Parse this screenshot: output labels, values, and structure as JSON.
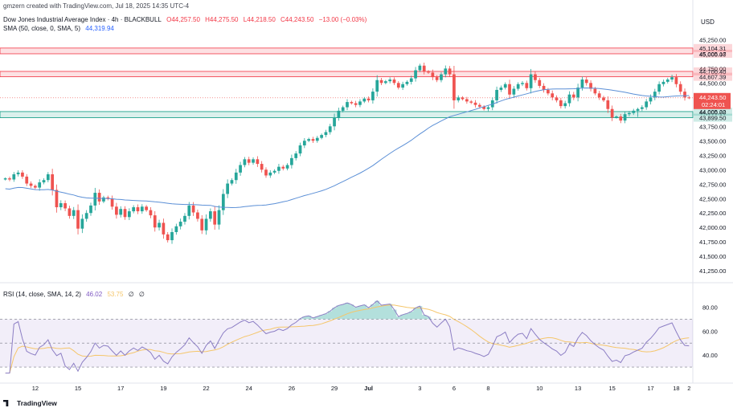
{
  "attribution": "gmzern created with TradingView.com, Jul 18, 2025 14:35 UTC-4",
  "branding": "TradingView",
  "currency": "USD",
  "legend": {
    "symbol": "Dow Jones Industrial Average Index · 4h · BLACKBULL",
    "open": "O44,257.50",
    "high": "H44,275.50",
    "low": "L44,218.50",
    "close": "C44,243.50",
    "change": "−13.00 (−0.03%)",
    "sma_label": "SMA (50, close, 0, SMA, 5)",
    "sma_value": "44,319.94",
    "rsi_label": "RSI (14, close, SMA, 14, 2)",
    "rsi_value": "46.02",
    "rsi_ma_value": "53.75",
    "rsi_extra_1": "∅",
    "rsi_extra_2": "∅"
  },
  "colors": {
    "up": "#26a69a",
    "down": "#ef5350",
    "sma": "#5b8fd6",
    "rsi": "#8c7ec4",
    "rsi_ma": "#f5c66b",
    "zone_red": "#f23645",
    "zone_green": "#089981"
  },
  "chart_data": {
    "type": "candlestick",
    "y_axis_ticks": [
      41250,
      41500,
      41750,
      42000,
      42250,
      42500,
      42750,
      43000,
      43250,
      43500,
      43750,
      44000,
      44250,
      44500,
      44750,
      45000,
      45250
    ],
    "y_axis_tick_labels": [
      "41,250.00",
      "41,500.00",
      "41,750.00",
      "42,000.00",
      "42,250.00",
      "42,500.00",
      "42,750.00",
      "43,000.00",
      "43,250.00",
      "43,500.00",
      "43,750.00",
      "44,000.00",
      "44,250.00",
      "44,500.00",
      "44,750.00",
      "45,000.00",
      "45,250.00"
    ],
    "ylim": [
      41100,
      45380
    ],
    "x_ticks": [
      {
        "label": "12",
        "bar": 7
      },
      {
        "label": "15",
        "bar": 17
      },
      {
        "label": "17",
        "bar": 27
      },
      {
        "label": "19",
        "bar": 37
      },
      {
        "label": "22",
        "bar": 47
      },
      {
        "label": "24",
        "bar": 57
      },
      {
        "label": "26",
        "bar": 67
      },
      {
        "label": "29",
        "bar": 77
      },
      {
        "label": "Jul",
        "bar": 85
      },
      {
        "label": "3",
        "bar": 97
      },
      {
        "label": "6",
        "bar": 105
      },
      {
        "label": "8",
        "bar": 113
      },
      {
        "label": "10",
        "bar": 125
      },
      {
        "label": "13",
        "bar": 134
      },
      {
        "label": "15",
        "bar": 142
      },
      {
        "label": "17",
        "bar": 151
      },
      {
        "label": "18",
        "bar": 157
      },
      {
        "label": "2",
        "bar": 163
      }
    ],
    "zones": [
      {
        "type": "resistance",
        "low": 45005.17,
        "high": 45104.31,
        "low_label": "45,005.17",
        "high_label": "45,104.31"
      },
      {
        "type": "resistance",
        "low": 44607.39,
        "high": 44700.4,
        "low_label": "44,607.39",
        "high_label": "44,700.40"
      },
      {
        "type": "support",
        "low": 43899.5,
        "high": 44005.22,
        "low_label": "43,899.50",
        "high_label": "44,005.22"
      }
    ],
    "last_price": {
      "value": 44243.5,
      "label": "44,243.50",
      "countdown": "02:24:01"
    },
    "closes": [
      42850,
      42830,
      42920,
      42950,
      42880,
      42760,
      42720,
      42690,
      42780,
      42820,
      42920,
      42650,
      42350,
      42420,
      42330,
      42200,
      42300,
      41980,
      42150,
      42250,
      42380,
      42600,
      42450,
      42520,
      42500,
      42360,
      42220,
      42320,
      42180,
      42280,
      42350,
      42280,
      42360,
      42300,
      42210,
      42000,
      42080,
      41880,
      41780,
      41920,
      42020,
      42100,
      42200,
      42380,
      42260,
      42150,
      41950,
      42150,
      42280,
      42050,
      42300,
      42580,
      42760,
      42820,
      42950,
      43080,
      43180,
      43120,
      43180,
      43100,
      43000,
      42900,
      42950,
      42980,
      43050,
      43020,
      43080,
      43200,
      43280,
      43420,
      43500,
      43530,
      43500,
      43550,
      43600,
      43650,
      43750,
      43900,
      44020,
      44080,
      44170,
      44150,
      44120,
      44180,
      44230,
      44200,
      44350,
      44550,
      44500,
      44530,
      44560,
      44500,
      44420,
      44480,
      44520,
      44580,
      44720,
      44800,
      44700,
      44680,
      44600,
      44550,
      44650,
      44750,
      44650,
      44200,
      44250,
      44220,
      44180,
      44160,
      44120,
      44090,
      44050,
      44080,
      44200,
      44380,
      44420,
      44480,
      44300,
      44400,
      44480,
      44500,
      44410,
      44650,
      44550,
      44450,
      44380,
      44320,
      44250,
      44200,
      44100,
      44150,
      44300,
      44250,
      44420,
      44560,
      44500,
      44400,
      44320,
      44250,
      44200,
      44050,
      43900,
      43920,
      43850,
      43960,
      43980,
      44020,
      44050,
      44080,
      44180,
      44250,
      44350,
      44480,
      44520,
      44560,
      44600,
      44480,
      44350,
      44250,
      44243.5
    ],
    "rsi": {
      "ylim": [
        20,
        95
      ],
      "upper_band": 70,
      "middle_band": 50,
      "lower_band": 30,
      "tick_values": [
        40,
        60,
        80
      ],
      "tick_labels": [
        "40.00",
        "60.00",
        "80.00"
      ]
    }
  }
}
